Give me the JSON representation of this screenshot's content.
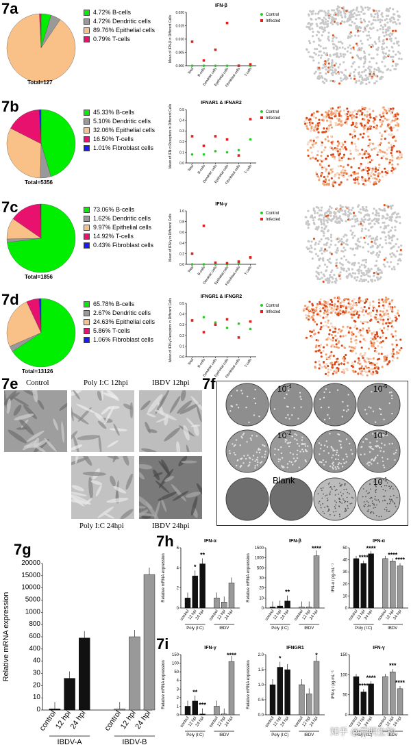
{
  "colors": {
    "bcell": "#00ee00",
    "dendritic": "#999999",
    "epithelial": "#f9c088",
    "tcell": "#e8126e",
    "fibroblast": "#1a1aff",
    "control": "#22cc22",
    "infected": "#e02020",
    "bar_black": "#111111",
    "bar_grey": "#999999"
  },
  "panels": {
    "a": {
      "label": "7a",
      "total": "Total=127",
      "legend": [
        "4.72% B-cells",
        "4.72% Dendritic cells",
        "89.76% Epithelial cells",
        "0.79% T-cells"
      ]
    },
    "b": {
      "label": "7b",
      "total": "Total=5356",
      "legend": [
        "45.33% B-cells",
        "5.10% Dendritic cells",
        "32.06% Epithelial cells",
        "16.50% T-cells",
        "1.01% Fibroblast cells"
      ]
    },
    "c": {
      "label": "7c",
      "total": "Total=1856",
      "legend": [
        "73.06% B-cells",
        "1.62% Dendritic cells",
        "9.97% Epithelial cells",
        "14.92% T-cells",
        "0.43% Fibroblast cells"
      ]
    },
    "d": {
      "label": "7d",
      "total": "Total=13126",
      "legend": [
        "65.78% B-cells",
        "2.67% Dendritic cells",
        "24.63% Epithelial cells",
        "5.86% T-cells",
        "1.06% Fibroblast cells"
      ]
    },
    "e": {
      "label": "7e",
      "control": "Control",
      "polyic12": "Poly I:C 12hpi",
      "ibdv12": "IBDV 12hpi",
      "polyic24": "Poly I:C 24hpi",
      "ibdv24": "IBDV 24hpi"
    },
    "f": {
      "label": "7f",
      "d4": "10",
      "e4": "-4",
      "d5": "10",
      "e5": "-5",
      "d2": "10",
      "e2": "-2",
      "d3": "10",
      "e3": "-3",
      "blank": "Blank",
      "d1": "10",
      "e1": "-1"
    },
    "g": {
      "label": "7g",
      "ylabel": "Relative mRNA expression",
      "sig_a": "****",
      "sig_b": "****",
      "group_a": "IBDV-A",
      "group_b": "IBDV-B"
    },
    "h": {
      "label": "7h"
    },
    "i": {
      "label": "7i"
    },
    "watermark": "知乎 @鹿明生物"
  },
  "chart_data": [
    {
      "type": "pie",
      "id": "7a",
      "labels": [
        "B-cells",
        "Dendritic cells",
        "Epithelial cells",
        "T-cells"
      ],
      "values": [
        4.72,
        4.72,
        89.76,
        0.79
      ]
    },
    {
      "type": "pie",
      "id": "7b",
      "labels": [
        "B-cells",
        "Dendritic cells",
        "Epithelial cells",
        "T-cells",
        "Fibroblast cells"
      ],
      "values": [
        45.33,
        5.1,
        32.06,
        16.5,
        1.01
      ]
    },
    {
      "type": "pie",
      "id": "7c",
      "labels": [
        "B-cells",
        "Dendritic cells",
        "Epithelial cells",
        "T-cells",
        "Fibroblast cells"
      ],
      "values": [
        73.06,
        1.62,
        9.97,
        14.92,
        0.43
      ]
    },
    {
      "type": "pie",
      "id": "7d",
      "labels": [
        "B-cells",
        "Dendritic cells",
        "Epithelial cells",
        "T-cells",
        "Fibroblast cells"
      ],
      "values": [
        65.78,
        2.67,
        24.63,
        5.86,
        1.06
      ]
    },
    {
      "type": "scatter",
      "id": "7a-dot",
      "title": "IFN-β",
      "ylabel": "Mean of IFN-β in Different Cells",
      "categories": [
        "Total",
        "B-cells",
        "Dendritic cells",
        "Epithelial cells",
        "Fibroblast cells",
        "T-cells"
      ],
      "ylim": [
        0,
        0.02
      ],
      "yticks": [
        "0.000",
        "0.005",
        "0.010",
        "0.015",
        "0.020"
      ],
      "legend": [
        "Control",
        "Infected"
      ],
      "series": [
        {
          "name": "Control",
          "values": [
            0,
            0,
            0,
            0,
            0,
            0
          ]
        },
        {
          "name": "Infected",
          "values": [
            0.009,
            0.002,
            0.006,
            0.016,
            0,
            0.0005
          ]
        }
      ]
    },
    {
      "type": "scatter",
      "id": "7b-dot",
      "title": "IFNAR1 & IFNAR2",
      "ylabel": "Mean of IFN-α Receptors in Different Cells",
      "categories": [
        "Total",
        "B-cells",
        "Dendritic cells",
        "Epithelial cells",
        "Fibroblast cells",
        "T-cells"
      ],
      "ylim": [
        0,
        0.5
      ],
      "yticks": [
        "0.0",
        "0.1",
        "0.2",
        "0.3",
        "0.4",
        "0.5"
      ],
      "legend": [
        "Control",
        "Infected"
      ],
      "series": [
        {
          "name": "Control",
          "values": [
            0.08,
            0.08,
            0.11,
            0.1,
            0.12,
            0.22
          ]
        },
        {
          "name": "Infected",
          "values": [
            0.25,
            0.16,
            0.25,
            0.22,
            0.07,
            0.41
          ]
        }
      ]
    },
    {
      "type": "scatter",
      "id": "7c-dot",
      "title": "IFN-γ",
      "ylabel": "Mean of IFN-γ in Different Cells",
      "categories": [
        "Total",
        "B-cells",
        "Dendritic cells",
        "Epithelial cells",
        "Fibroblast cells",
        "T-cells"
      ],
      "ylim": [
        0,
        1.0
      ],
      "yticks": [
        "0.0",
        "0.2",
        "0.4",
        "0.6",
        "0.8",
        "1.0"
      ],
      "legend": [
        "Control",
        "Infected"
      ],
      "series": [
        {
          "name": "Control",
          "values": [
            0,
            0,
            0,
            0,
            0.02,
            0.12
          ]
        },
        {
          "name": "Infected",
          "values": [
            0.2,
            0.72,
            0.03,
            0.02,
            0.05,
            0.13
          ]
        }
      ]
    },
    {
      "type": "scatter",
      "id": "7d-dot",
      "title": "IFNGR1 & IFNGR2",
      "ylabel": "Mean of IFN-γ Receptors in Different Cells",
      "categories": [
        "Total",
        "B-cells",
        "Dendritic cells",
        "Epithelial cells",
        "Fibroblast cells",
        "T-cells"
      ],
      "ylim": [
        0,
        0.5
      ],
      "yticks": [
        "0.0",
        "0.1",
        "0.2",
        "0.3",
        "0.4",
        "0.5"
      ],
      "legend": [
        "Control",
        "Infected"
      ],
      "series": [
        {
          "name": "Control",
          "values": [
            0.34,
            0.37,
            0.32,
            0.27,
            0.31,
            0.26
          ]
        },
        {
          "name": "Infected",
          "values": [
            0.34,
            0.23,
            0.3,
            0.35,
            0.18,
            0.33
          ]
        }
      ]
    },
    {
      "type": "bar",
      "id": "7g",
      "ylabel": "Relative mRNA expression",
      "categories": [
        "control",
        "12 hpi",
        "24 hpi",
        "control",
        "12 hpi",
        "24 hpi"
      ],
      "groups": [
        "IBDV-A",
        "IBDV-B"
      ],
      "values": [
        1,
        26,
        580,
        1,
        600,
        15500
      ],
      "yticks": [
        "0",
        "10",
        "20",
        "30",
        "40",
        "400",
        "600",
        "800",
        "1000",
        "5000",
        "10000",
        "15000",
        "20000"
      ]
    },
    {
      "type": "bar",
      "id": "7h-1",
      "title": "IFN-α",
      "ylabel": "Relative mRNA expression",
      "categories": [
        "control",
        "12 hpi",
        "24 hpi",
        "control",
        "12 hpi",
        "24 hpi"
      ],
      "groups": [
        "Poly (I:C)",
        "IBDV"
      ],
      "values": [
        1,
        3.2,
        4.4,
        1,
        0.6,
        2.5
      ],
      "ylim": [
        0,
        6
      ],
      "yticks": [
        "0",
        "2",
        "4",
        "6"
      ],
      "sig": [
        "",
        "*",
        "**",
        "",
        "",
        ""
      ]
    },
    {
      "type": "bar",
      "id": "7h-2",
      "title": "IFN-β",
      "ylabel": "Relative mRNA expression",
      "categories": [
        "control",
        "12 hpi",
        "24 hpi",
        "control",
        "12 hpi",
        "24 hpi"
      ],
      "groups": [
        "Poly (I:C)",
        "IBDV"
      ],
      "values": [
        1,
        2,
        7,
        1,
        1,
        1100
      ],
      "yticks": [
        "0",
        "10",
        "20",
        "30",
        "500",
        "1000",
        "1500"
      ],
      "sig": [
        "",
        "",
        "**",
        "",
        "",
        "****"
      ]
    },
    {
      "type": "bar",
      "id": "7h-3",
      "title": "IFN-α",
      "ylabel": "IFN-α / pg·mL⁻¹",
      "categories": [
        "control",
        "12 hpi",
        "24 hpi",
        "control",
        "12 hpi",
        "24 hpi"
      ],
      "groups": [
        "Poly (I:C)",
        "IBDV"
      ],
      "values": [
        41,
        37,
        45,
        41,
        39,
        35
      ],
      "ylim": [
        0,
        50
      ],
      "yticks": [
        "0",
        "10",
        "20",
        "30",
        "40",
        "50"
      ],
      "sig": [
        "",
        "****",
        "****",
        "",
        "****",
        "****"
      ]
    },
    {
      "type": "bar",
      "id": "7i-1",
      "title": "IFN-γ",
      "ylabel": "Relative mRNA expression",
      "categories": [
        "control",
        "12 hpi",
        "24 hpi",
        "control",
        "12 hpi",
        "24 hpi"
      ],
      "groups": [
        "Poly (I:C)",
        "IBDV"
      ],
      "values": [
        1,
        1.6,
        0.1,
        1,
        0.1,
        110
      ],
      "yticks": [
        "0",
        "1",
        "2",
        "3",
        "4",
        "50",
        "100",
        "150"
      ],
      "sig": [
        "",
        "**",
        "***",
        "",
        "",
        "****"
      ]
    },
    {
      "type": "bar",
      "id": "7i-2",
      "title": "IFNGR1",
      "ylabel": "Relative mRNA expression",
      "categories": [
        "control",
        "12 hpi",
        "24 hpi",
        "control",
        "12 hpi",
        "24 hpi"
      ],
      "groups": [
        "Poly (I:C)",
        "IBDV"
      ],
      "values": [
        1,
        1.58,
        1.5,
        1,
        0.7,
        1.78
      ],
      "ylim": [
        0,
        2
      ],
      "yticks": [
        "0.0",
        "0.5",
        "1.0",
        "1.5",
        "2.0"
      ],
      "sig": [
        "",
        "*",
        "",
        "",
        "",
        "*"
      ]
    },
    {
      "type": "bar",
      "id": "7i-3",
      "title": "IFN-γ",
      "ylabel": "IFN-γ / pg·mL⁻¹",
      "categories": [
        "control",
        "12 hpi",
        "24 hpi",
        "control",
        "12 hpi",
        "24 hpi"
      ],
      "groups": [
        "Poly (I:C)",
        "IBDV"
      ],
      "values": [
        95,
        57,
        77,
        95,
        107,
        65
      ],
      "ylim": [
        0,
        150
      ],
      "yticks": [
        "0",
        "50",
        "100",
        "150"
      ],
      "sig": [
        "",
        "****",
        "****",
        "",
        "***",
        "****"
      ]
    }
  ]
}
